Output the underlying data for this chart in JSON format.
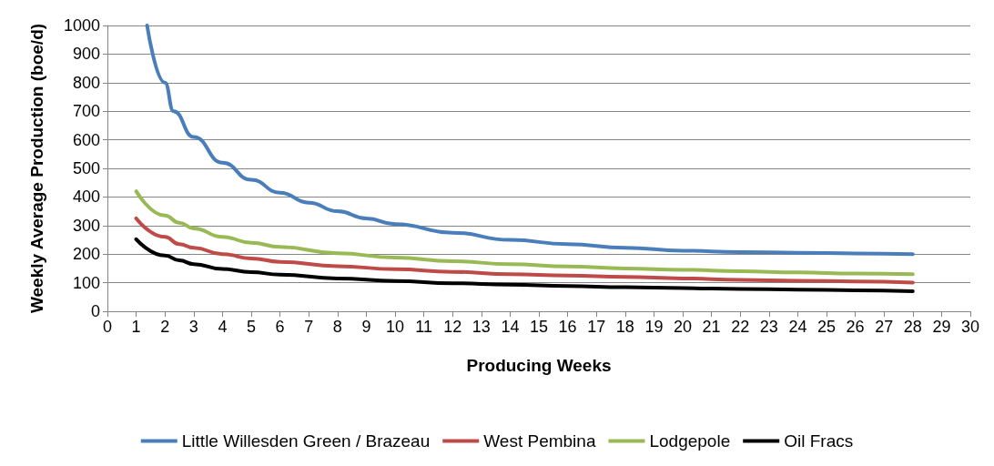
{
  "chart_data": {
    "type": "line",
    "xlabel": "Producing Weeks",
    "ylabel": "Weekly Average Production (boe/d)",
    "xlim": [
      0,
      30
    ],
    "xticks": [
      0,
      1,
      2,
      3,
      4,
      5,
      6,
      7,
      8,
      9,
      10,
      11,
      12,
      13,
      14,
      15,
      16,
      17,
      18,
      19,
      20,
      21,
      22,
      23,
      24,
      25,
      26,
      27,
      28,
      29,
      30
    ],
    "ylim": [
      0,
      1000
    ],
    "yticks": [
      0,
      100,
      200,
      300,
      400,
      500,
      600,
      700,
      800,
      900,
      1000
    ],
    "grid": "y",
    "legend": "bottom",
    "marker": "none",
    "line_style": "solid",
    "series": [
      {
        "name": "Little Willesden Green / Brazeau",
        "color": "#4a7ebb",
        "x": [
          1.38,
          2,
          2.3,
          3,
          4,
          5,
          6,
          7,
          8,
          9,
          10,
          12,
          14,
          16,
          18,
          20,
          22,
          24,
          26,
          28
        ],
        "values": [
          1000,
          800,
          700,
          610,
          520,
          460,
          415,
          380,
          350,
          325,
          305,
          275,
          250,
          235,
          222,
          212,
          207,
          205,
          202,
          200
        ]
      },
      {
        "name": "West Pembina",
        "color": "#be4b48",
        "x": [
          1,
          2,
          2.5,
          3,
          4,
          5,
          6,
          8,
          10,
          12,
          14,
          16,
          18,
          20,
          22,
          24,
          26,
          28
        ],
        "values": [
          325,
          260,
          235,
          222,
          200,
          185,
          173,
          158,
          147,
          138,
          130,
          125,
          120,
          115,
          110,
          107,
          104,
          100
        ]
      },
      {
        "name": "Lodgepole",
        "color": "#98b954",
        "x": [
          1,
          2,
          2.5,
          3,
          4,
          5,
          6,
          8,
          10,
          12,
          14,
          16,
          18,
          20,
          22,
          24,
          26,
          28
        ],
        "values": [
          420,
          335,
          310,
          290,
          260,
          240,
          225,
          203,
          188,
          175,
          165,
          157,
          150,
          145,
          140,
          136,
          132,
          130
        ]
      },
      {
        "name": "Oil Fracs",
        "color": "#000000",
        "x": [
          1,
          2,
          2.5,
          3,
          4,
          5,
          6,
          8,
          10,
          12,
          14,
          16,
          18,
          20,
          22,
          24,
          26,
          28
        ],
        "values": [
          252,
          195,
          178,
          165,
          148,
          137,
          128,
          115,
          106,
          98,
          93,
          88,
          84,
          81,
          78,
          76,
          73,
          70
        ]
      }
    ]
  }
}
